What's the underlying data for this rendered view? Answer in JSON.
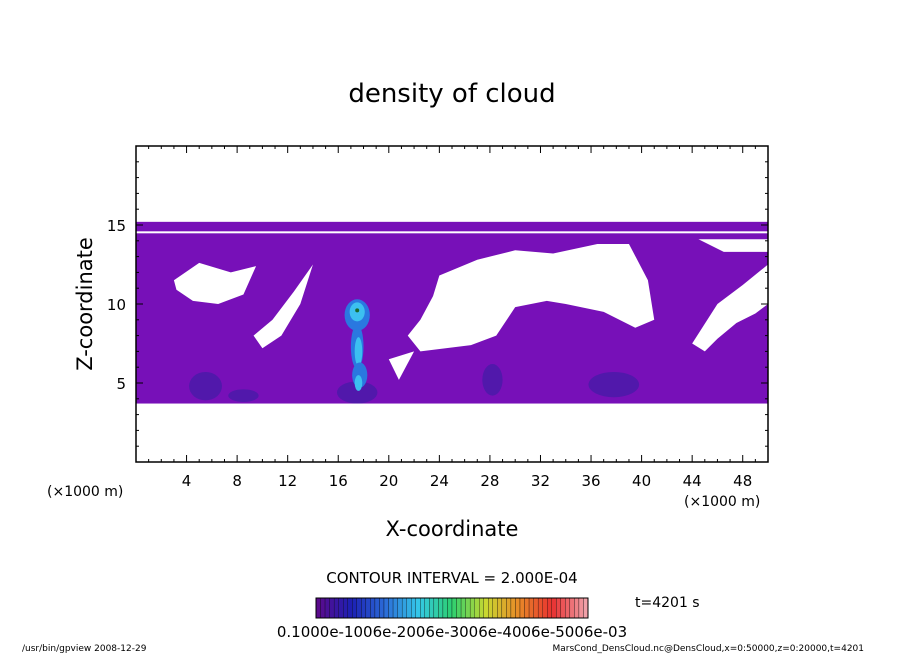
{
  "chart_data": {
    "type": "heatmap",
    "title": "density of cloud",
    "xlabel": "X-coordinate",
    "ylabel": "Z-coordinate",
    "x_unit": "(×1000 m)",
    "z_unit": "(×1000 m)",
    "xlim": [
      0,
      50
    ],
    "ylim": [
      0,
      20
    ],
    "x_ticks": [
      4,
      8,
      12,
      16,
      20,
      24,
      28,
      32,
      36,
      40,
      44,
      48
    ],
    "y_ticks": [
      5,
      10,
      15
    ],
    "contour_interval": "CONTOUR INTERVAL = 2.000E-04",
    "time_label": "t=4201 s",
    "colorbar": {
      "labels": "0.1000e-1006e-2006e-3006e-4006e-5006e-03",
      "colors": [
        "#5a0a8c",
        "#1c20b4",
        "#2c6cd8",
        "#34c8e8",
        "#2cd070",
        "#c8d830",
        "#e88a28",
        "#e83030",
        "#f0a0a8"
      ]
    },
    "cloud_layer_z": [
      3.7,
      15.2
    ],
    "gap_regions_note": "",
    "plume_x": 17.5,
    "plume_top_z": 10.2
  },
  "footer": {
    "left": "/usr/bin/gpview   2008-12-29",
    "right": "MarsCond_DensCloud.nc@DensCloud,x=0:50000,z=0:20000,t=4201"
  },
  "colors": {
    "cloud": "#7710b8",
    "cloud_dark": "#4a1aa8",
    "plume_core": "#3cc0f0"
  }
}
